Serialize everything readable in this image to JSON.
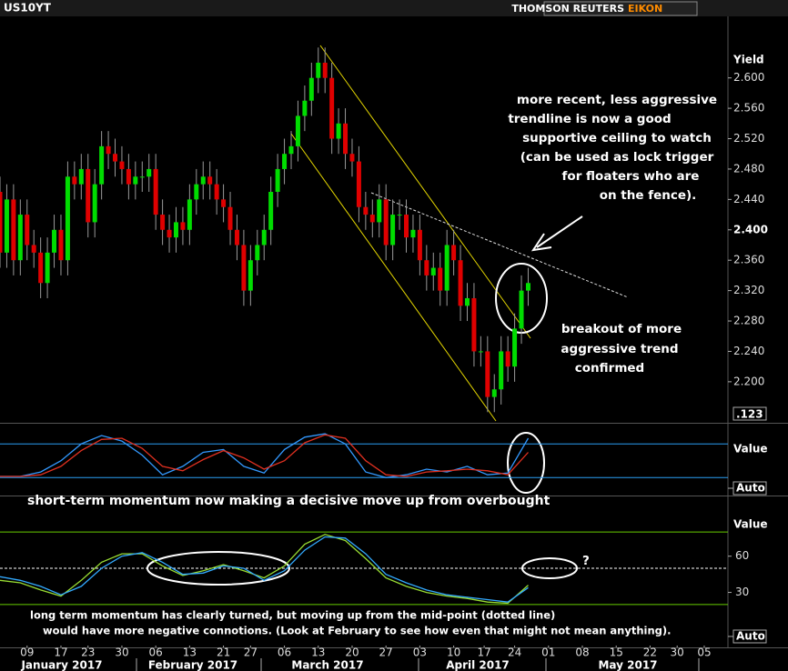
{
  "chart_data": [
    {
      "type": "candlestick",
      "title": "US10YT",
      "brand": "THOMSON REUTERS",
      "brand_accent": "EIKON",
      "y_label": "Yield",
      "scale_badge": ".123",
      "up_color": "#00dd00",
      "down_color": "#e00000",
      "xlim": [
        0,
        107.5
      ],
      "ylim": [
        2.146,
        2.681
      ],
      "yticks": [
        {
          "value": 2.6,
          "label": "2.600"
        },
        {
          "value": 2.56,
          "label": "2.560"
        },
        {
          "value": 2.52,
          "label": "2.520"
        },
        {
          "value": 2.48,
          "label": "2.480"
        },
        {
          "value": 2.44,
          "label": "2.440"
        },
        {
          "value": 2.4,
          "label": "2.400"
        },
        {
          "value": 2.36,
          "label": "2.360"
        },
        {
          "value": 2.32,
          "label": "2.320"
        },
        {
          "value": 2.28,
          "label": "2.280"
        },
        {
          "value": 2.24,
          "label": "2.240"
        },
        {
          "value": 2.2,
          "label": "2.200"
        }
      ],
      "xticks": [
        {
          "value": 4,
          "label": "09"
        },
        {
          "value": 9,
          "label": "17"
        },
        {
          "value": 13,
          "label": "23"
        },
        {
          "value": 18,
          "label": "30"
        },
        {
          "value": 23,
          "label": "06"
        },
        {
          "value": 28,
          "label": "13"
        },
        {
          "value": 33,
          "label": "21"
        },
        {
          "value": 37,
          "label": "27"
        },
        {
          "value": 42,
          "label": "06"
        },
        {
          "value": 47,
          "label": "13"
        },
        {
          "value": 52,
          "label": "20"
        },
        {
          "value": 57,
          "label": "27"
        },
        {
          "value": 62,
          "label": "03"
        },
        {
          "value": 67,
          "label": "10"
        },
        {
          "value": 71.5,
          "label": "17"
        },
        {
          "value": 76,
          "label": "24"
        },
        {
          "value": 81,
          "label": "01"
        },
        {
          "value": 86,
          "label": "08"
        },
        {
          "value": 91,
          "label": "15"
        },
        {
          "value": 96,
          "label": "22"
        },
        {
          "value": 100,
          "label": "30"
        },
        {
          "value": 104,
          "label": "05"
        }
      ],
      "months": [
        "January 2017",
        "February 2017",
        "March 2017",
        "April 2017",
        "May 2017"
      ],
      "open": [
        2.45,
        2.37,
        2.44,
        2.36,
        2.42,
        2.38,
        2.37,
        2.33,
        2.37,
        2.4,
        2.36,
        2.47,
        2.46,
        2.48,
        2.41,
        2.46,
        2.51,
        2.5,
        2.49,
        2.48,
        2.46,
        2.47,
        2.47,
        2.48,
        2.42,
        2.4,
        2.39,
        2.41,
        2.4,
        2.44,
        2.46,
        2.47,
        2.46,
        2.44,
        2.43,
        2.4,
        2.38,
        2.32,
        2.36,
        2.38,
        2.4,
        2.45,
        2.48,
        2.5,
        2.51,
        2.55,
        2.57,
        2.6,
        2.62,
        2.6,
        2.52,
        2.54,
        2.5,
        2.49,
        2.43,
        2.42,
        2.41,
        2.44,
        2.38,
        2.42,
        2.42,
        2.39,
        2.4,
        2.36,
        2.34,
        2.35,
        2.32,
        2.38,
        2.36,
        2.3,
        2.31,
        2.24,
        2.24,
        2.18,
        2.19,
        2.24,
        2.22,
        2.27,
        2.32
      ],
      "high": [
        2.47,
        2.46,
        2.46,
        2.44,
        2.44,
        2.4,
        2.39,
        2.39,
        2.42,
        2.42,
        2.49,
        2.49,
        2.5,
        2.5,
        2.48,
        2.53,
        2.53,
        2.52,
        2.51,
        2.5,
        2.49,
        2.49,
        2.5,
        2.5,
        2.44,
        2.42,
        2.43,
        2.43,
        2.46,
        2.48,
        2.49,
        2.49,
        2.48,
        2.46,
        2.45,
        2.42,
        2.4,
        2.38,
        2.4,
        2.42,
        2.47,
        2.5,
        2.52,
        2.53,
        2.57,
        2.59,
        2.62,
        2.64,
        2.64,
        2.62,
        2.56,
        2.56,
        2.52,
        2.51,
        2.45,
        2.44,
        2.46,
        2.46,
        2.44,
        2.44,
        2.44,
        2.42,
        2.42,
        2.38,
        2.37,
        2.37,
        2.4,
        2.4,
        2.38,
        2.33,
        2.33,
        2.26,
        2.26,
        2.21,
        2.26,
        2.26,
        2.29,
        2.34,
        2.35
      ],
      "low": [
        2.35,
        2.35,
        2.34,
        2.34,
        2.36,
        2.35,
        2.31,
        2.31,
        2.35,
        2.34,
        2.34,
        2.44,
        2.44,
        2.39,
        2.39,
        2.44,
        2.48,
        2.47,
        2.46,
        2.44,
        2.44,
        2.45,
        2.45,
        2.4,
        2.38,
        2.37,
        2.37,
        2.38,
        2.38,
        2.42,
        2.44,
        2.44,
        2.42,
        2.41,
        2.38,
        2.36,
        2.3,
        2.3,
        2.34,
        2.36,
        2.38,
        2.43,
        2.46,
        2.48,
        2.49,
        2.53,
        2.55,
        2.58,
        2.58,
        2.5,
        2.5,
        2.48,
        2.47,
        2.41,
        2.4,
        2.39,
        2.39,
        2.36,
        2.36,
        2.4,
        2.37,
        2.37,
        2.34,
        2.32,
        2.32,
        2.3,
        2.3,
        2.34,
        2.28,
        2.28,
        2.22,
        2.22,
        2.16,
        2.16,
        2.17,
        2.2,
        2.2,
        2.25,
        2.3
      ],
      "close": [
        2.37,
        2.44,
        2.36,
        2.42,
        2.38,
        2.37,
        2.33,
        2.37,
        2.4,
        2.36,
        2.47,
        2.46,
        2.48,
        2.41,
        2.46,
        2.51,
        2.5,
        2.49,
        2.48,
        2.46,
        2.47,
        2.47,
        2.48,
        2.42,
        2.4,
        2.39,
        2.41,
        2.4,
        2.44,
        2.46,
        2.47,
        2.46,
        2.44,
        2.43,
        2.4,
        2.38,
        2.32,
        2.36,
        2.38,
        2.4,
        2.45,
        2.48,
        2.5,
        2.51,
        2.55,
        2.57,
        2.6,
        2.62,
        2.6,
        2.52,
        2.54,
        2.5,
        2.49,
        2.43,
        2.42,
        2.41,
        2.44,
        2.38,
        2.42,
        2.42,
        2.39,
        2.4,
        2.36,
        2.34,
        2.35,
        2.32,
        2.38,
        2.36,
        2.3,
        2.31,
        2.24,
        2.24,
        2.18,
        2.19,
        2.24,
        2.22,
        2.27,
        2.32,
        2.33
      ],
      "annotations": [
        [
          "more recent, less aggressive",
          "trendline is now a good",
          "supportive ceiling to watch",
          "(can be used as lock trigger",
          "for floaters who are",
          "on the fence)."
        ],
        [
          "breakout of more",
          "aggressive trend",
          "confirmed"
        ]
      ]
    },
    {
      "type": "line",
      "y_label": "Value",
      "scale_mode": "Auto",
      "xlim": [
        0,
        107.5
      ],
      "ylim": [
        -12,
        116
      ],
      "levels": [
        80,
        20
      ],
      "level_color": "#2a9df4",
      "x": [
        0,
        3,
        6,
        9,
        12,
        15,
        18,
        21,
        24,
        27,
        30,
        33,
        36,
        39,
        42,
        45,
        48,
        51,
        54,
        57,
        60,
        63,
        66,
        69,
        72,
        75,
        78
      ],
      "series": [
        {
          "color": "#3399ff",
          "values": [
            22,
            22,
            30,
            50,
            80,
            95,
            85,
            60,
            25,
            40,
            65,
            70,
            40,
            28,
            70,
            92,
            98,
            80,
            30,
            20,
            25,
            35,
            30,
            40,
            25,
            28,
            90
          ]
        },
        {
          "color": "#e03020",
          "values": [
            22,
            22,
            25,
            40,
            68,
            88,
            90,
            72,
            40,
            32,
            52,
            68,
            55,
            35,
            50,
            82,
            96,
            90,
            50,
            25,
            22,
            30,
            32,
            35,
            32,
            25,
            65
          ]
        }
      ],
      "annotation": "short-term momentum now making a decisive move up from overbought"
    },
    {
      "type": "line",
      "y_label": "Value",
      "scale_mode": "Auto",
      "xlim": [
        0,
        107.5
      ],
      "ylim": [
        -15.5,
        109.5
      ],
      "yticks": [
        60,
        30
      ],
      "levels": [
        80,
        20
      ],
      "level_color": "#66cc00",
      "midline": 50,
      "x": [
        0,
        3,
        6,
        9,
        12,
        15,
        18,
        21,
        24,
        27,
        30,
        33,
        36,
        39,
        42,
        45,
        48,
        51,
        54,
        57,
        60,
        63,
        66,
        69,
        72,
        75,
        78
      ],
      "series": [
        {
          "color": "#99dd33",
          "values": [
            40,
            38,
            32,
            27,
            40,
            55,
            62,
            62,
            52,
            44,
            48,
            53,
            48,
            42,
            52,
            70,
            78,
            73,
            58,
            42,
            35,
            30,
            27,
            25,
            22,
            21,
            36
          ]
        },
        {
          "color": "#33aaff",
          "values": [
            43,
            40,
            35,
            28,
            35,
            50,
            60,
            63,
            55,
            45,
            46,
            52,
            50,
            40,
            48,
            65,
            76,
            75,
            62,
            45,
            38,
            32,
            28,
            26,
            24,
            22,
            34
          ]
        }
      ],
      "annotation": [
        "long term momentum has clearly turned, but moving up from the mid-point (dotted line)",
        "would have more negative connotions.  (Look at February to see how even that might not mean anything)."
      ],
      "question": "?"
    }
  ]
}
